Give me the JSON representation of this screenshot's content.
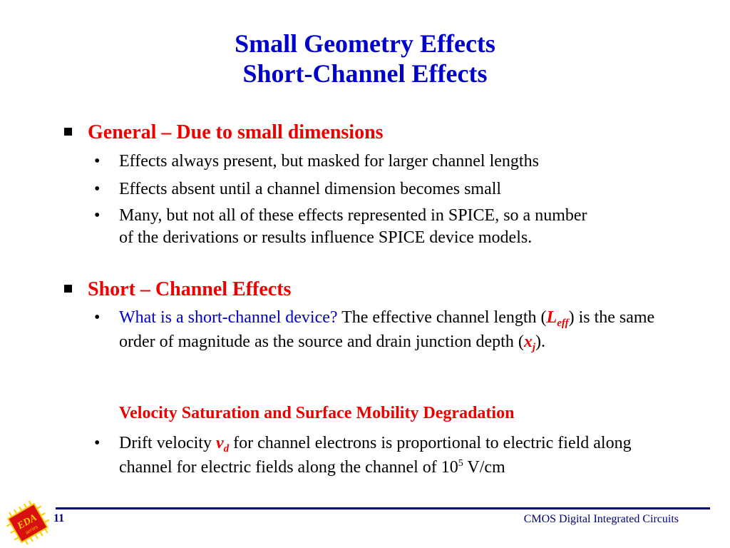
{
  "title": {
    "line1": "Small Geometry Effects",
    "line2": "Short-Channel Effects"
  },
  "section1": {
    "heading": "General – Due to small dimensions",
    "bullets": [
      "Effects always present, but masked for larger channel lengths",
      "Effects absent until a channel dimension becomes small",
      "Many, but not all of these effects represented in SPICE, so a number of the derivations or results influence SPICE device models."
    ]
  },
  "section2": {
    "heading": "Short – Channel Effects",
    "bullet1": {
      "question": "What is a short-channel device?",
      "text_a": " The effective channel length (",
      "leff_var": "L",
      "leff_sub": "eff",
      "text_b": ") is the same order of magnitude as the source and drain junction depth (",
      "xj_var": "x",
      "xj_sub": "j",
      "text_c": ")."
    },
    "subheading": "Velocity Saturation and Surface Mobility Degradation",
    "bullet2": {
      "text_a": "Drift velocity ",
      "vd_var": "v",
      "vd_sub": "d",
      "text_b": " for channel electrons is proportional to electric field along channel for electric fields along the channel of 10",
      "exp": "5",
      "text_c": " V/cm"
    }
  },
  "footer": {
    "page_number": "11",
    "course": "CMOS Digital Integrated Circuits",
    "logo_text": "EDA",
    "logo_subtext": "series"
  },
  "colors": {
    "title": "#0000cc",
    "heading": "#ee0000",
    "footer": "#000080"
  }
}
